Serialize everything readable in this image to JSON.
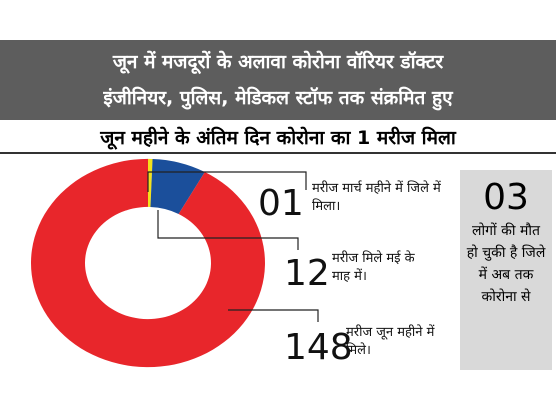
{
  "chart_data": {
    "type": "donut",
    "title": [
      "जून में मजदूरों के अलावा कोरोना वॉरियर डॉक्टर",
      "इंजीनियर, पुलिस, मेडिकल स्टॉफ तक संक्रमित हुए"
    ],
    "subtitle": "जून महीने के अंतिम दिन कोरोना का 1 मरीज मिला",
    "categories": [
      "मरीज मार्च महीने में जिले में मिला।",
      "मरीज मिले मई के माह में।",
      "मरीज जून महीने में मिले।"
    ],
    "values": [
      1,
      12,
      148
    ],
    "value_labels": [
      "01",
      "12",
      "148"
    ],
    "colors": [
      "#f3e21b",
      "#1b4f9b",
      "#e8262b"
    ],
    "annotation": {
      "value": 3,
      "label": "03",
      "text": "लोगों की मौत हो चुकी है जिले में अब तक कोरोना से"
    }
  }
}
